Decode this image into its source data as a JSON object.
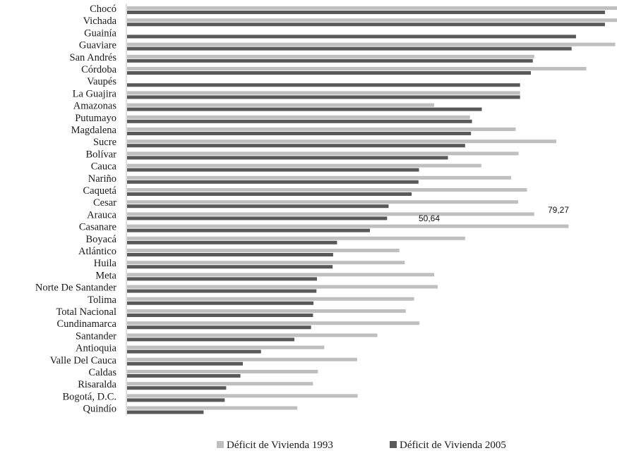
{
  "chart_data": {
    "type": "bar",
    "orientation": "horizontal",
    "title": "",
    "xlabel": "",
    "ylabel": "",
    "xlim": [
      0,
      100
    ],
    "grid": false,
    "legend_position": "bottom",
    "categories": [
      "Chocó",
      "Vichada",
      "Guainía",
      "Guaviare",
      "San Andrés",
      "Córdoba",
      "Vaupés",
      "La Guajira",
      "Amazonas",
      "Putumayo",
      "Magdalena",
      "Sucre",
      "Bolívar",
      "Cauca",
      "Nariño",
      "Caquetá",
      "Cesar",
      "Arauca",
      "Casanare",
      "Boyacá",
      "Atlántico",
      "Huila",
      "Meta",
      "Norte De Santander",
      "Tolima",
      "Total Nacional",
      "Cundinamarca",
      "Santander",
      "Antioquia",
      "Valle Del Cauca",
      "Caldas",
      "Risaralda",
      "Bogotá, D.C.",
      "Quindío"
    ],
    "series": [
      {
        "name": "Déficit de Vivienda 1993",
        "color": "#bfbfbf",
        "values": [
          99.9,
          100.0,
          0,
          99.5,
          83.0,
          93.6,
          0,
          80.1,
          62.6,
          69.9,
          79.2,
          87.5,
          79.8,
          72.2,
          78.3,
          81.5,
          79.7,
          83.0,
          90.0,
          68.9,
          55.5,
          56.6,
          62.6,
          63.3,
          58.5,
          56.8,
          59.6,
          51.0,
          40.2,
          46.9,
          38.9,
          37.9,
          47.0,
          34.7
        ]
      },
      {
        "name": "Déficit de Vivienda 2005",
        "color": "#595959",
        "values": [
          97.4,
          97.4,
          91.5,
          90.6,
          82.7,
          82.3,
          80.1,
          80.1,
          72.3,
          70.3,
          70.1,
          68.9,
          65.4,
          59.5,
          59.4,
          58.0,
          53.3,
          53.0,
          49.5,
          42.8,
          42.0,
          41.9,
          38.7,
          38.6,
          38.0,
          37.9,
          37.5,
          34.1,
          27.3,
          23.6,
          23.1,
          20.2,
          19.9,
          15.6
        ]
      }
    ],
    "annotations": [
      "79,27",
      "50,64"
    ]
  },
  "legend": {
    "item1": "Déficit de Vivienda 1993",
    "item2": "Déficit de Vivienda 2005"
  }
}
